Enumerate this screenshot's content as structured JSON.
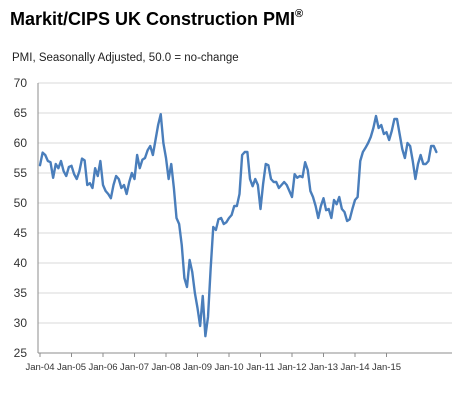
{
  "title_main": "Markit/CIPS UK Construction PMI",
  "title_mark": "®",
  "subtitle": "PMI, Seasonally Adjusted, 50.0 = no-change",
  "chart_data": {
    "type": "line",
    "title": "Markit/CIPS UK Construction PMI®",
    "subtitle": "PMI, Seasonally Adjusted, 50.0 = no-change",
    "xlabel": "",
    "ylabel": "",
    "ylim": [
      25,
      70
    ],
    "yticks": [
      25,
      30,
      35,
      40,
      45,
      50,
      55,
      60,
      65,
      70
    ],
    "xtick_labels": [
      "Jan-04",
      "Jan-05",
      "Jan-06",
      "Jan-07",
      "Jan-08",
      "Jan-09",
      "Jan-10",
      "Jan-11",
      "Jan-12",
      "Jan-13",
      "Jan-14",
      "Jan-15"
    ],
    "grid": "horizontal",
    "legend": "none",
    "series_color": "#4a7ebb",
    "x_start": "Jan-04",
    "x_frequency": "monthly",
    "values": [
      56.3,
      58.4,
      58.0,
      57.0,
      56.8,
      54.2,
      56.5,
      55.8,
      57.0,
      55.3,
      54.5,
      56.0,
      56.2,
      54.8,
      54.0,
      55.3,
      57.4,
      57.1,
      53.0,
      53.3,
      52.5,
      55.8,
      54.5,
      57.0,
      53.0,
      52.0,
      51.5,
      50.8,
      53.0,
      54.5,
      54.0,
      52.5,
      53.0,
      51.5,
      53.5,
      55.0,
      54.0,
      58.0,
      55.8,
      57.2,
      57.5,
      58.8,
      59.5,
      58.0,
      60.5,
      63.0,
      64.8,
      60.0,
      57.5,
      54.0,
      56.5,
      52.5,
      47.5,
      46.5,
      43.0,
      37.5,
      36.0,
      40.5,
      38.5,
      35.0,
      32.5,
      29.5,
      34.5,
      27.8,
      31.0,
      39.0,
      46.0,
      45.5,
      47.3,
      47.5,
      46.5,
      46.8,
      47.5,
      48.0,
      49.5,
      49.5,
      51.5,
      58.0,
      58.5,
      58.5,
      54.0,
      52.8,
      54.0,
      53.0,
      49.0,
      53.2,
      56.5,
      56.3,
      54.0,
      53.5,
      53.5,
      52.5,
      53.0,
      53.5,
      53.0,
      52.0,
      51.0,
      54.8,
      54.2,
      54.5,
      54.3,
      56.8,
      55.5,
      52.0,
      51.0,
      49.5,
      47.5,
      49.5,
      50.8,
      48.8,
      49.0,
      47.5,
      50.5,
      49.8,
      51.0,
      49.0,
      48.5,
      47.0,
      47.3,
      49.0,
      50.5,
      51.0,
      57.0,
      58.5,
      59.2,
      60.0,
      61.0,
      62.5,
      64.5,
      62.5,
      63.0,
      61.5,
      61.8,
      60.5,
      62.0,
      64.0,
      64.0,
      61.5,
      59.0,
      57.5,
      60.0,
      59.5,
      57.0,
      54.0,
      56.5,
      58.0,
      56.5,
      56.5,
      57.0,
      59.5,
      59.5,
      58.5
    ]
  }
}
